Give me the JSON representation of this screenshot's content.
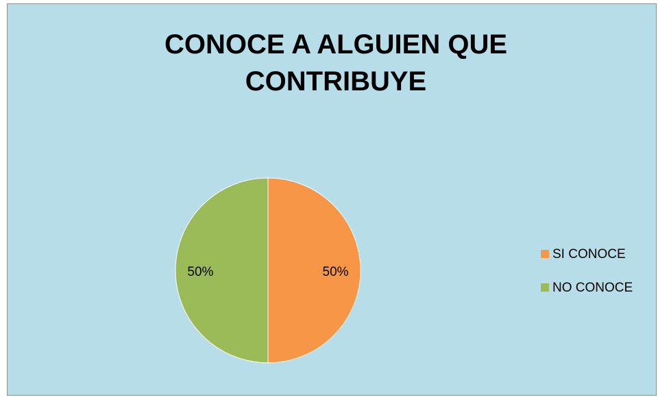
{
  "chart_data": {
    "type": "pie",
    "title": "CONOCE A ALGUIEN QUE CONTRIBUYE",
    "categories": [
      "SI CONOCE",
      "NO CONOCE"
    ],
    "values": [
      50,
      50
    ],
    "value_labels": [
      "50%",
      "50%"
    ],
    "colors": [
      "#f79646",
      "#9bbb59"
    ],
    "legend": "right"
  }
}
